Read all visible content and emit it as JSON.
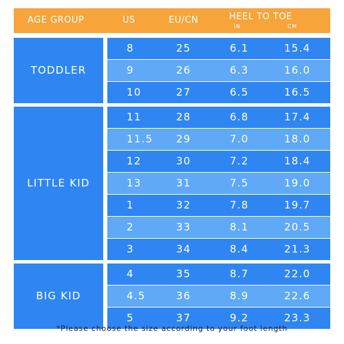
{
  "header": {
    "age_group": "AGE GROUP",
    "us": "US",
    "eu_cn": "EU/CN",
    "heel_to_toe": "HEEL TO TOE",
    "in": "IN",
    "cm": "CM"
  },
  "groups": [
    {
      "name": "TODDLER",
      "rows": [
        {
          "us": "8",
          "eu": "25",
          "in": "6.1",
          "cm": "15.4"
        },
        {
          "us": "9",
          "eu": "26",
          "in": "6.3",
          "cm": "16.0"
        },
        {
          "us": "10",
          "eu": "27",
          "in": "6.5",
          "cm": "16.5"
        }
      ]
    },
    {
      "name": "LITTLE KID",
      "rows": [
        {
          "us": "11",
          "eu": "28",
          "in": "6.8",
          "cm": "17.4"
        },
        {
          "us": "11.5",
          "eu": "29",
          "in": "7.0",
          "cm": "18.0"
        },
        {
          "us": "12",
          "eu": "30",
          "in": "7.2",
          "cm": "18.4"
        },
        {
          "us": "13",
          "eu": "31",
          "in": "7.5",
          "cm": "19.0"
        },
        {
          "us": "1",
          "eu": "32",
          "in": "7.8",
          "cm": "19.7"
        },
        {
          "us": "2",
          "eu": "33",
          "in": "8.1",
          "cm": "20.5"
        },
        {
          "us": "3",
          "eu": "34",
          "in": "8.4",
          "cm": "21.3"
        }
      ]
    },
    {
      "name": "BIG KID",
      "rows": [
        {
          "us": "4",
          "eu": "35",
          "in": "8.7",
          "cm": "22.0"
        },
        {
          "us": "4.5",
          "eu": "36",
          "in": "8.9",
          "cm": "22.6"
        },
        {
          "us": "5",
          "eu": "37",
          "in": "9.2",
          "cm": "23.3"
        }
      ]
    }
  ],
  "footer": "*Please choose the size according to your foot length",
  "colors": {
    "header_orange": "#f7a43a",
    "row_dark_blue": "#2f86f2",
    "row_light_blue": "#5fa9f7"
  }
}
